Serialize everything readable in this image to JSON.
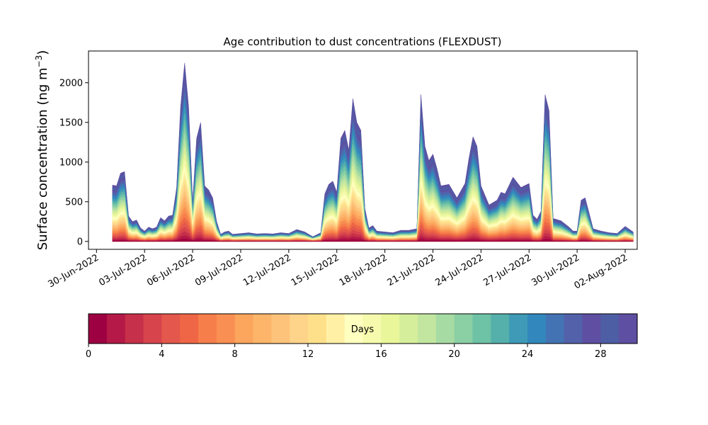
{
  "chart_data": {
    "type": "area",
    "stacked": true,
    "title": "Age contribution to dust concentrations (FLEXDUST)",
    "ylabel": "Surface concentration (ng m",
    "ylabel_sup": "−3",
    "ylabel_close": ")",
    "ylim": [
      -100,
      2400
    ],
    "yticks": [
      0,
      500,
      1000,
      1500,
      2000
    ],
    "xlim": [
      "2022-06-29T12:00",
      "2022-08-02T18:00"
    ],
    "xtick_labels": [
      "30-Jun-2022",
      "03-Jul-2022",
      "06-Jul-2022",
      "09-Jul-2022",
      "12-Jul-2022",
      "15-Jul-2022",
      "18-Jul-2022",
      "21-Jul-2022",
      "24-Jul-2022",
      "27-Jul-2022",
      "30-Jul-2022",
      "02-Aug-2022"
    ],
    "xtick_dates": [
      "2022-06-30",
      "2022-07-03",
      "2022-07-06",
      "2022-07-09",
      "2022-07-12",
      "2022-07-15",
      "2022-07-18",
      "2022-07-21",
      "2022-07-24",
      "2022-07-27",
      "2022-07-30",
      "2022-08-02"
    ],
    "n_age_classes": 30,
    "total_series": {
      "name": "total",
      "dates": [
        "2022-07-01T00:00",
        "2022-07-01T06:00",
        "2022-07-01T12:00",
        "2022-07-01T18:00",
        "2022-07-02T00:00",
        "2022-07-02T06:00",
        "2022-07-02T12:00",
        "2022-07-02T18:00",
        "2022-07-03T00:00",
        "2022-07-03T06:00",
        "2022-07-03T12:00",
        "2022-07-03T18:00",
        "2022-07-04T00:00",
        "2022-07-04T06:00",
        "2022-07-04T12:00",
        "2022-07-04T18:00",
        "2022-07-05T00:00",
        "2022-07-05T06:00",
        "2022-07-05T12:00",
        "2022-07-05T18:00",
        "2022-07-06T00:00",
        "2022-07-06T06:00",
        "2022-07-06T12:00",
        "2022-07-06T18:00",
        "2022-07-07T00:00",
        "2022-07-07T06:00",
        "2022-07-07T12:00",
        "2022-07-07T18:00",
        "2022-07-08T00:00",
        "2022-07-08T06:00",
        "2022-07-08T12:00",
        "2022-07-09T00:00",
        "2022-07-09T12:00",
        "2022-07-10T00:00",
        "2022-07-10T12:00",
        "2022-07-11T00:00",
        "2022-07-11T12:00",
        "2022-07-12T00:00",
        "2022-07-12T12:00",
        "2022-07-13T00:00",
        "2022-07-13T12:00",
        "2022-07-14T00:00",
        "2022-07-14T06:00",
        "2022-07-14T12:00",
        "2022-07-14T18:00",
        "2022-07-15T00:00",
        "2022-07-15T06:00",
        "2022-07-15T12:00",
        "2022-07-15T18:00",
        "2022-07-16T00:00",
        "2022-07-16T06:00",
        "2022-07-16T12:00",
        "2022-07-16T18:00",
        "2022-07-17T00:00",
        "2022-07-17T06:00",
        "2022-07-17T12:00",
        "2022-07-18T00:00",
        "2022-07-18T12:00",
        "2022-07-19T00:00",
        "2022-07-19T12:00",
        "2022-07-20T00:00",
        "2022-07-20T06:00",
        "2022-07-20T12:00",
        "2022-07-20T18:00",
        "2022-07-21T00:00",
        "2022-07-21T06:00",
        "2022-07-21T12:00",
        "2022-07-22T00:00",
        "2022-07-22T12:00",
        "2022-07-23T00:00",
        "2022-07-23T06:00",
        "2022-07-23T12:00",
        "2022-07-23T18:00",
        "2022-07-24T00:00",
        "2022-07-24T12:00",
        "2022-07-25T00:00",
        "2022-07-25T06:00",
        "2022-07-25T12:00",
        "2022-07-26T00:00",
        "2022-07-26T12:00",
        "2022-07-27T00:00",
        "2022-07-27T06:00",
        "2022-07-27T12:00",
        "2022-07-27T18:00",
        "2022-07-28T00:00",
        "2022-07-28T06:00",
        "2022-07-28T12:00",
        "2022-07-29T00:00",
        "2022-07-29T12:00",
        "2022-07-29T18:00",
        "2022-07-30T00:00",
        "2022-07-30T06:00",
        "2022-07-30T12:00",
        "2022-07-31T00:00",
        "2022-07-31T12:00",
        "2022-08-01T00:00",
        "2022-08-01T12:00",
        "2022-08-02T00:00",
        "2022-08-02T12:00"
      ],
      "values": [
        710,
        700,
        860,
        880,
        320,
        250,
        270,
        170,
        130,
        180,
        160,
        180,
        300,
        260,
        320,
        330,
        680,
        1700,
        2250,
        1700,
        500,
        1300,
        1500,
        700,
        650,
        550,
        250,
        90,
        120,
        130,
        90,
        100,
        110,
        95,
        100,
        95,
        110,
        100,
        150,
        120,
        60,
        110,
        600,
        720,
        760,
        620,
        1300,
        1400,
        1150,
        1800,
        1500,
        1400,
        420,
        170,
        200,
        130,
        120,
        110,
        140,
        140,
        160,
        1850,
        1200,
        1020,
        1100,
        920,
        700,
        720,
        550,
        730,
        1050,
        1320,
        1200,
        700,
        460,
        520,
        620,
        600,
        810,
        680,
        730,
        330,
        280,
        380,
        1850,
        1650,
        290,
        260,
        180,
        130,
        130,
        520,
        550,
        160,
        130,
        110,
        100,
        190,
        120
      ]
    },
    "colorbar": {
      "label": "Days",
      "ticks": [
        0,
        4,
        8,
        12,
        16,
        20,
        24,
        28
      ],
      "range": [
        0,
        30
      ],
      "colors": [
        "#9e0142",
        "#b41947",
        "#c7304a",
        "#d7444c",
        "#e4574c",
        "#ef6646",
        "#f67e4b",
        "#f98f52",
        "#fca55d",
        "#fdb56a",
        "#fec37a",
        "#fed38a",
        "#fee08b",
        "#fff0a6",
        "#ffffbf",
        "#f5faad",
        "#e9f69a",
        "#d5ee9b",
        "#c2e6a0",
        "#a7dba4",
        "#8bcfa4",
        "#6ec2a5",
        "#55b0ab",
        "#3e9ab6",
        "#3288bd",
        "#4473b3",
        "#5361aa",
        "#5e4fa2",
        "#4e5ea5",
        "#5e4fa2"
      ]
    },
    "grid": false,
    "legend": "colorbar-bottom"
  }
}
